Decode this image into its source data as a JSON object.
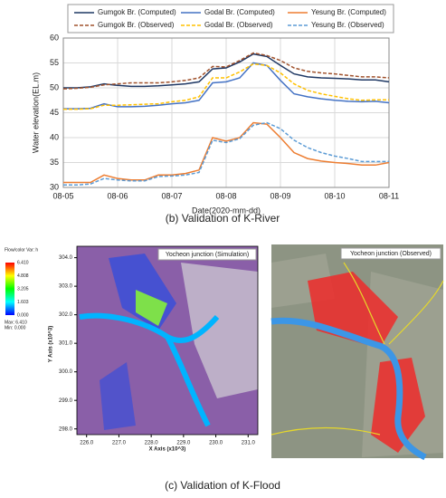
{
  "chart_data": {
    "type": "line",
    "x": [
      5,
      5.25,
      5.5,
      5.75,
      6,
      6.25,
      6.5,
      6.75,
      7,
      7.25,
      7.5,
      7.75,
      8,
      8.25,
      8.5,
      8.75,
      9,
      9.25,
      9.5,
      9.75,
      10,
      10.25,
      10.5,
      10.75,
      11
    ],
    "series": [
      {
        "name": "Gumgok Br. (Computed)",
        "color": "#1f3864",
        "style": "solid",
        "values": [
          50,
          50,
          50.2,
          50.8,
          50.5,
          50.3,
          50.3,
          50.4,
          50.6,
          50.8,
          51.2,
          53.8,
          54,
          55.2,
          56.8,
          56.3,
          54.5,
          52.8,
          52.2,
          52,
          51.9,
          51.8,
          51.6,
          51.6,
          51.2
        ]
      },
      {
        "name": "Godal Br. (Computed)",
        "color": "#4472c4",
        "style": "solid",
        "values": [
          45.8,
          45.8,
          45.9,
          46.8,
          46.2,
          46.2,
          46.3,
          46.5,
          46.8,
          47,
          47.5,
          51,
          51.2,
          52,
          55,
          54.5,
          51.5,
          48.8,
          48.2,
          47.8,
          47.5,
          47.3,
          47.2,
          47.3,
          47
        ]
      },
      {
        "name": "Yesung Br. (Computed)",
        "color": "#ed7d31",
        "style": "solid",
        "values": [
          31,
          31,
          31,
          32.5,
          31.8,
          31.5,
          31.5,
          32.5,
          32.5,
          32.8,
          33.5,
          40,
          39.3,
          40,
          43,
          42.7,
          40,
          37,
          35.8,
          35.3,
          35,
          34.8,
          34.5,
          34.5,
          35
        ]
      },
      {
        "name": "Gumgok Br. (Observed)",
        "color": "#a0522d",
        "style": "dashed",
        "values": [
          49.8,
          49.9,
          50.1,
          50.6,
          50.8,
          51,
          51,
          51,
          51.2,
          51.5,
          52,
          54.3,
          54.2,
          55.5,
          57,
          56.5,
          55.5,
          54,
          53.3,
          53,
          52.8,
          52.5,
          52.2,
          52.2,
          52
        ]
      },
      {
        "name": "Godal Br. (Observed)",
        "color": "#ffc000",
        "style": "dashed",
        "values": [
          45.7,
          45.7,
          45.8,
          46.5,
          46.5,
          46.6,
          46.7,
          46.8,
          47.2,
          47.5,
          48.2,
          52,
          52,
          53.2,
          54.8,
          54.5,
          53,
          50.8,
          49.5,
          48.8,
          48.3,
          47.8,
          47.5,
          47.6,
          47.6
        ]
      },
      {
        "name": "Yesung Br. (Observed)",
        "color": "#5b9bd5",
        "style": "dashed",
        "values": [
          30.5,
          30.5,
          30.7,
          31.8,
          31.5,
          31.3,
          31.3,
          32.2,
          32.3,
          32.5,
          33,
          39.5,
          39,
          39.8,
          42.5,
          43,
          41.8,
          39.5,
          38,
          37,
          36.3,
          35.8,
          35.2,
          35.2,
          35.2
        ]
      }
    ],
    "xlabel": "Date(2020-mm-dd)",
    "ylabel": "Water elevation(EL.m)",
    "xlim": [
      5,
      11
    ],
    "xticks": [
      {
        "value": 5,
        "label": "08-05"
      },
      {
        "value": 6,
        "label": "08-06"
      },
      {
        "value": 7,
        "label": "08-07"
      },
      {
        "value": 8,
        "label": "08-08"
      },
      {
        "value": 9,
        "label": "08-09"
      },
      {
        "value": 10,
        "label": "08-10"
      },
      {
        "value": 11,
        "label": "08-11"
      }
    ],
    "ylim": [
      30,
      60
    ],
    "yticks": [
      30,
      35,
      40,
      45,
      50,
      55,
      60
    ],
    "grid": true,
    "legend": "top"
  },
  "captions": [
    "(b) Validation of K-River",
    "(c) Validation of K-Flood"
  ],
  "simulation": {
    "title": "Yocheon junction (Simulation)",
    "colorbar_title": "Flow/color Var: h",
    "colorbar_ticks": [
      "6.410",
      "4.808",
      "3.205",
      "1.603",
      "0.000"
    ],
    "colorbar_stats": [
      "Max: 6.410",
      "Min: 0.000"
    ],
    "xlabel": "X Axis (x10^3)",
    "ylabel": "Y Axis (x10^3)",
    "xlim": [
      225.7,
      231.3
    ],
    "ylim": [
      297.8,
      304.4
    ],
    "xticks": [
      {
        "value": 226,
        "label": "226.0"
      },
      {
        "value": 227,
        "label": "227.0"
      },
      {
        "value": 228,
        "label": "228.0"
      },
      {
        "value": 229,
        "label": "229.0"
      },
      {
        "value": 230,
        "label": "230.0"
      },
      {
        "value": 231,
        "label": "231.0"
      }
    ],
    "yticks": [
      {
        "value": 298,
        "label": "298.0"
      },
      {
        "value": 299,
        "label": "299.0"
      },
      {
        "value": 300,
        "label": "300.0"
      },
      {
        "value": 301,
        "label": "301.0"
      },
      {
        "value": 302,
        "label": "302.0"
      },
      {
        "value": 303,
        "label": "303.0"
      },
      {
        "value": 304,
        "label": "304.0"
      }
    ]
  },
  "observed": {
    "title": "Yocheon junction (Observed)"
  }
}
